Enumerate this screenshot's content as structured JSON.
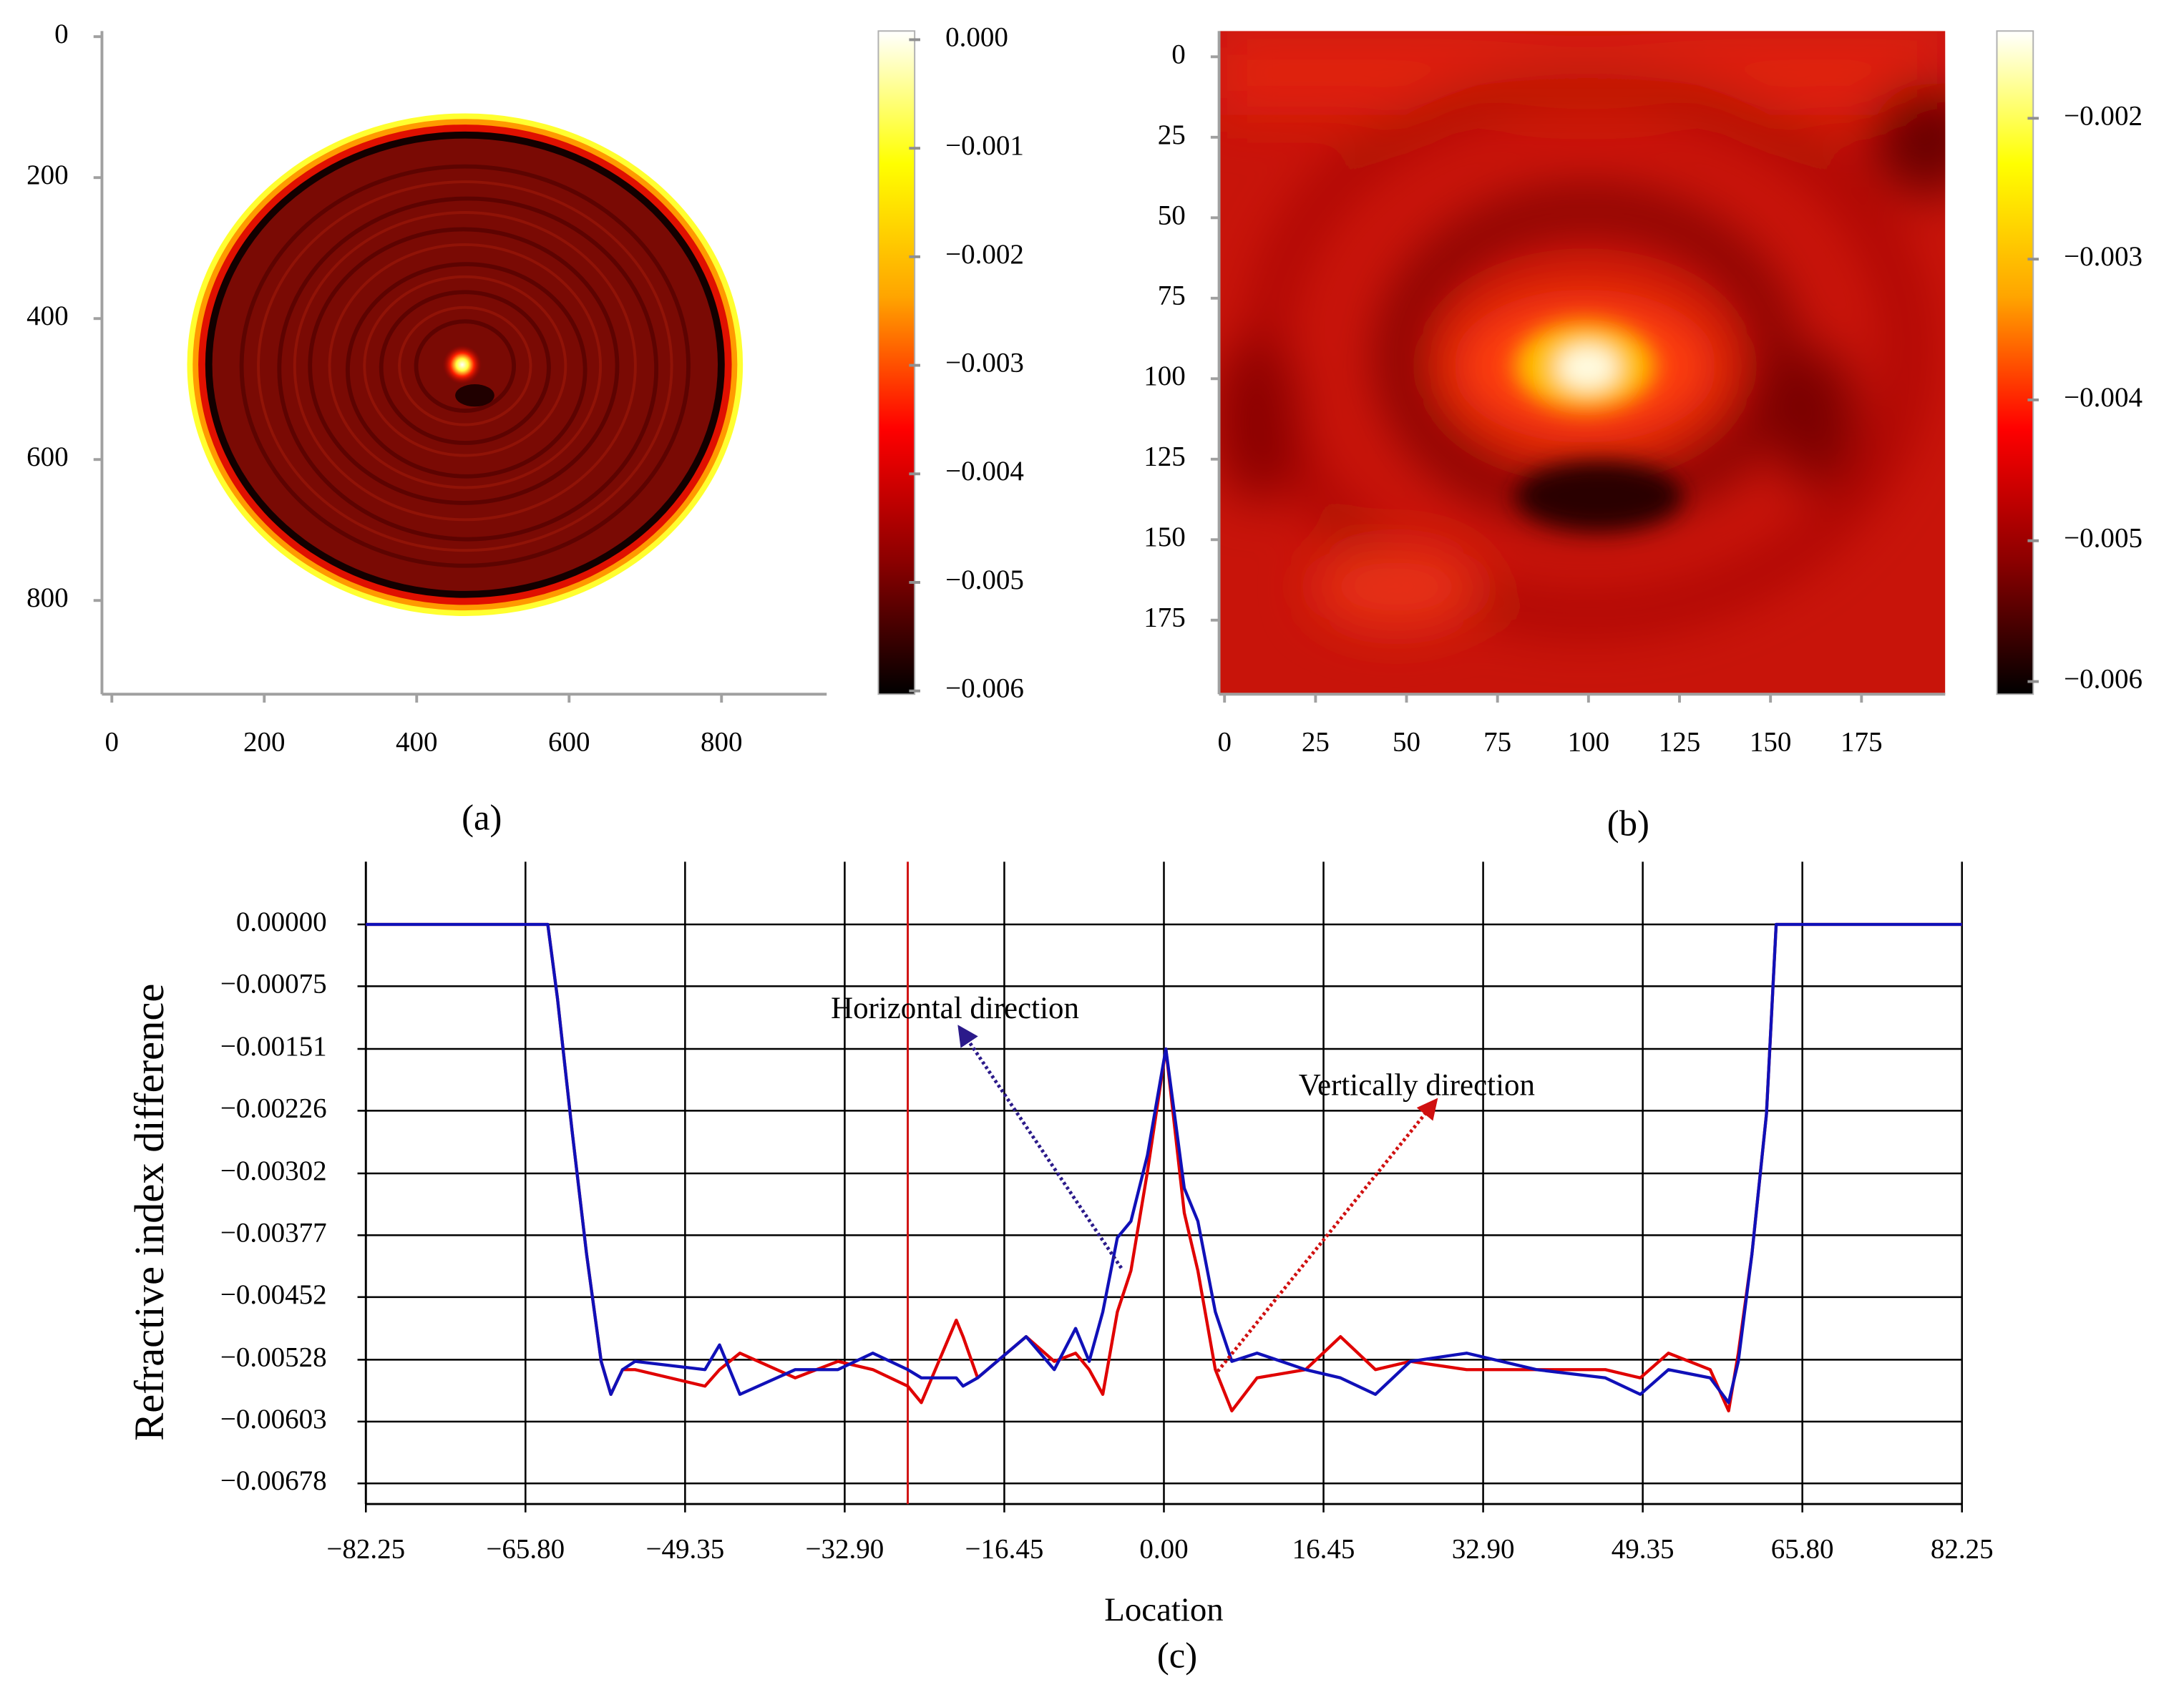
{
  "chart_data": [
    {
      "type": "heatmap",
      "caption": "(a)",
      "xlim": [
        -13,
        938
      ],
      "xticks": [
        0,
        200,
        400,
        600,
        800
      ],
      "ylim": [
        -8,
        933
      ],
      "yticks": [
        0,
        200,
        400,
        600,
        800
      ],
      "y_inverted": true,
      "colormap": [
        "#000000",
        "#8b0000",
        "#ff0000",
        "#ffa500",
        "#ffff00",
        "#ffffff"
      ],
      "colorbar": {
        "lim": [
          -0.00603,
          8e-05
        ],
        "ticks": [
          {
            "value": 0,
            "label": "0.000"
          },
          {
            "value": -0.001,
            "label": "−0.001"
          },
          {
            "value": -0.002,
            "label": "−0.002"
          },
          {
            "value": -0.003,
            "label": "−0.003"
          },
          {
            "value": -0.004,
            "label": "−0.004"
          },
          {
            "value": -0.005,
            "label": "−0.005"
          },
          {
            "value": -0.006,
            "label": "−0.006"
          }
        ]
      }
    },
    {
      "type": "heatmap",
      "caption": "(b)",
      "xlim": [
        -1.5,
        198
      ],
      "xticks": [
        0,
        25,
        50,
        75,
        100,
        125,
        150,
        175
      ],
      "ylim": [
        -8,
        198
      ],
      "yticks": [
        0,
        25,
        50,
        75,
        100,
        125,
        150,
        175
      ],
      "y_inverted": true,
      "colormap": [
        "#000000",
        "#8b0000",
        "#ff0000",
        "#ffa500",
        "#ffff00",
        "#ffffff"
      ],
      "colorbar": {
        "lim": [
          -0.00609,
          -0.00138
        ],
        "ticks": [
          {
            "value": -0.002,
            "label": "−0.002"
          },
          {
            "value": -0.003,
            "label": "−0.003"
          },
          {
            "value": -0.004,
            "label": "−0.004"
          },
          {
            "value": -0.005,
            "label": "−0.005"
          },
          {
            "value": -0.006,
            "label": "−0.006"
          }
        ]
      }
    },
    {
      "type": "line",
      "caption": "(c)",
      "xlabel": "Location",
      "ylabel": "Refractive index difference",
      "grid": true,
      "xlim": [
        -82.25,
        82.25
      ],
      "xticks": [
        {
          "value": -82.25,
          "label": "−82.25"
        },
        {
          "value": -65.8,
          "label": "−65.80"
        },
        {
          "value": -49.35,
          "label": "−49.35"
        },
        {
          "value": -32.9,
          "label": "−32.90"
        },
        {
          "value": -16.45,
          "label": "−16.45"
        },
        {
          "value": 0,
          "label": "0.00"
        },
        16.45,
        {
          "value": 32.9,
          "label": "32.90"
        },
        49.35,
        {
          "value": 65.8,
          "label": "65.80"
        },
        82.25
      ],
      "ylim": [
        -0.00703,
        0.00076
      ],
      "yticks": [
        {
          "value": 0,
          "label": "0.00000"
        },
        {
          "value": -0.00075,
          "label": "−0.00075"
        },
        {
          "value": -0.00151,
          "label": "−0.00151"
        },
        {
          "value": -0.00226,
          "label": "−0.00226"
        },
        {
          "value": -0.00302,
          "label": "−0.00302"
        },
        {
          "value": -0.00377,
          "label": "−0.00377"
        },
        {
          "value": -0.00452,
          "label": "−0.00452"
        },
        {
          "value": -0.00528,
          "label": "−0.00528"
        },
        {
          "value": -0.00603,
          "label": "−0.00603"
        },
        {
          "value": -0.00678,
          "label": "−0.00678"
        }
      ],
      "reference_line_x": -26.4,
      "reference_line_color": "#d01010",
      "x": [
        -82.25,
        -63.5,
        -62.5,
        -61,
        -59.5,
        -58,
        -57,
        -55.8,
        -54.5,
        -47.3,
        -45.8,
        -43.7,
        -38,
        -33.6,
        -30,
        -26.4,
        -25,
        -21.4,
        -20.7,
        -19.2,
        -14.2,
        -11.3,
        -9.1,
        -7.7,
        -6.3,
        -4.8,
        -3.4,
        -1.7,
        0.2,
        2.1,
        3.5,
        5.3,
        7,
        9.6,
        14.6,
        18.2,
        21.8,
        25.4,
        31.2,
        38.4,
        45.5,
        49.1,
        52,
        56.3,
        58.2,
        59.2,
        60.6,
        62.1,
        63.1,
        82.25
      ],
      "series": [
        {
          "name": "Vertically direction",
          "color": "#e00000",
          "values": [
            0,
            0,
            -0.0009,
            -0.0025,
            -0.004,
            -0.0053,
            -0.0057,
            -0.0054,
            -0.0054,
            -0.0056,
            -0.0054,
            -0.0052,
            -0.0055,
            -0.0053,
            -0.0054,
            -0.0056,
            -0.0058,
            -0.0048,
            -0.005,
            -0.0055,
            -0.005,
            -0.0053,
            -0.0052,
            -0.0054,
            -0.0057,
            -0.0047,
            -0.0042,
            -0.003,
            -0.00151,
            -0.0035,
            -0.0042,
            -0.0054,
            -0.0059,
            -0.0055,
            -0.0054,
            -0.005,
            -0.0054,
            -0.0053,
            -0.0054,
            -0.0054,
            -0.0054,
            -0.0055,
            -0.0052,
            -0.0054,
            -0.0059,
            -0.0052,
            -0.004,
            -0.0023,
            0,
            0
          ]
        },
        {
          "name": "Horizontal direction",
          "color": "#1010b8",
          "values": [
            0,
            0,
            -0.0009,
            -0.0025,
            -0.004,
            -0.0053,
            -0.0057,
            -0.0054,
            -0.0053,
            -0.0054,
            -0.0051,
            -0.0057,
            -0.0054,
            -0.0054,
            -0.0052,
            -0.0054,
            -0.0055,
            -0.0055,
            -0.0056,
            -0.0055,
            -0.005,
            -0.0054,
            -0.0049,
            -0.0053,
            -0.0047,
            -0.0038,
            -0.0036,
            -0.0028,
            -0.00151,
            -0.0032,
            -0.0036,
            -0.0047,
            -0.0053,
            -0.0052,
            -0.0054,
            -0.0055,
            -0.0057,
            -0.0053,
            -0.0052,
            -0.0054,
            -0.0055,
            -0.0057,
            -0.0054,
            -0.0055,
            -0.0058,
            -0.0053,
            -0.004,
            -0.0023,
            0,
            0
          ]
        }
      ]
    }
  ]
}
